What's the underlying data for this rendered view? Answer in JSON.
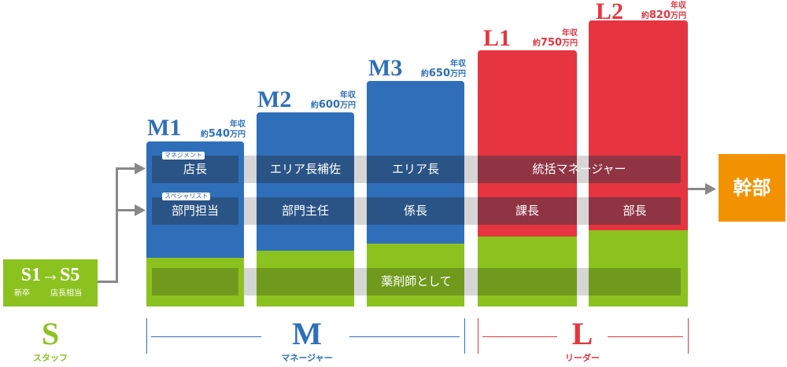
{
  "start_box": {
    "code": "S1→S5",
    "sub_left": "新卒",
    "sub_right": "店長相当"
  },
  "columns": [
    {
      "code": "M1",
      "nen": "年収",
      "yaku": "約",
      "amount": "540",
      "man": "万円"
    },
    {
      "code": "M2",
      "nen": "年収",
      "yaku": "約",
      "amount": "600",
      "man": "万円"
    },
    {
      "code": "M3",
      "nen": "年収",
      "yaku": "約",
      "amount": "650",
      "man": "万円"
    },
    {
      "code": "L1",
      "nen": "年収",
      "yaku": "約",
      "amount": "750",
      "man": "万円"
    },
    {
      "code": "L2",
      "nen": "年収",
      "yaku": "約",
      "amount": "820",
      "man": "万円"
    }
  ],
  "tags": {
    "manager": "マネジメント",
    "specialist": "スペシャリスト"
  },
  "row_manager": [
    "店長",
    "エリア長補佐",
    "エリア長",
    "統括マネージャー"
  ],
  "row_specialist": [
    "部門担当",
    "部門主任",
    "係長",
    "課長",
    "部長"
  ],
  "row_pharmacist": "薬剤師として",
  "end_box": "幹部",
  "categories": [
    {
      "letter": "S",
      "label": "スタッフ"
    },
    {
      "letter": "M",
      "label": "マネージャー"
    },
    {
      "letter": "L",
      "label": "リーダー"
    }
  ],
  "colors": {
    "blue": "#2f6fba",
    "red": "#e63540",
    "green": "#8cc21f",
    "orange": "#f39200"
  }
}
